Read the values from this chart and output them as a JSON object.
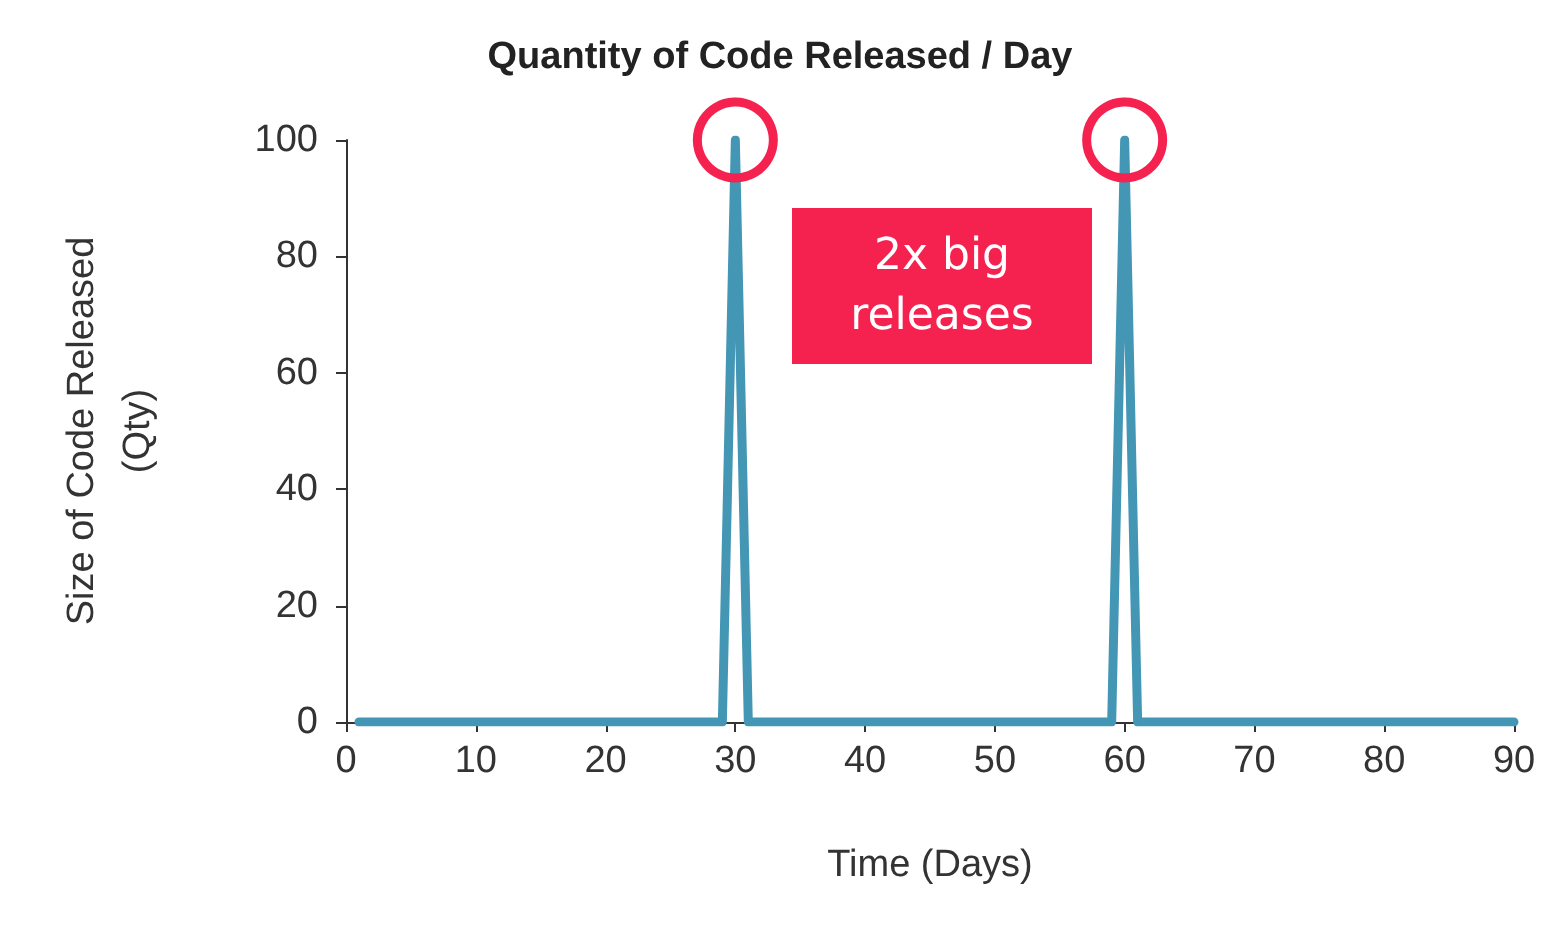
{
  "chart_data": {
    "type": "line",
    "title": "Quantity of Code Released / Day",
    "xlabel": "Time (Days)",
    "ylabel": "Size of Code Released\n(Qty)",
    "x": [
      1,
      29,
      30,
      31,
      59,
      60,
      61,
      90
    ],
    "series": [
      {
        "color": "#4396b4",
        "values": [
          0,
          0,
          100,
          0,
          0,
          100,
          0,
          0
        ]
      }
    ],
    "xlim": [
      0,
      90
    ],
    "xticks": [
      0,
      10,
      20,
      30,
      40,
      50,
      60,
      70,
      80,
      90
    ],
    "ylim": [
      0,
      100
    ],
    "yticks": [
      0,
      20,
      40,
      60,
      80,
      100
    ],
    "grid": false,
    "marker": "none",
    "line_style": "solid",
    "annotations": [
      "2x big releases"
    ]
  }
}
